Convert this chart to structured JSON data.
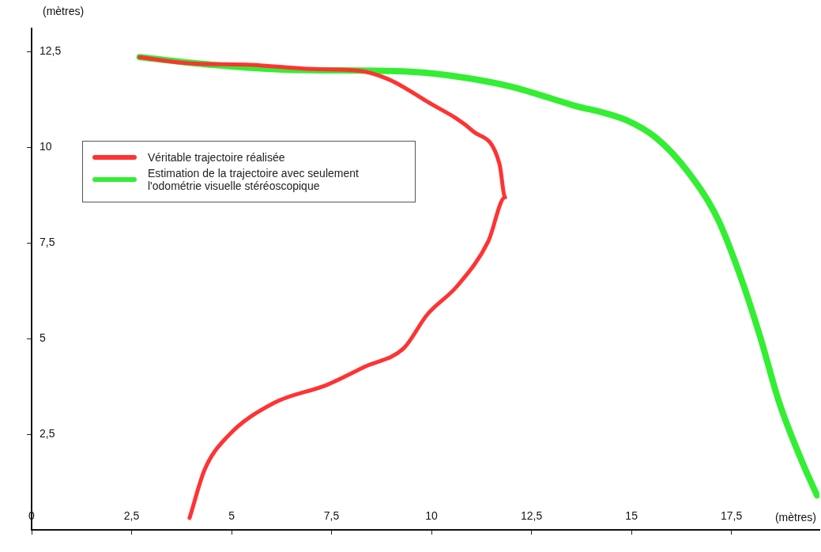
{
  "chart_data": {
    "type": "line",
    "xlabel": "(mètres)",
    "ylabel": "(mètres)",
    "xlim": [
      0,
      19.7
    ],
    "ylim": [
      0,
      13.1
    ],
    "xticks": [
      0,
      {
        "value": 2.5,
        "label": "2,5"
      },
      5,
      {
        "value": 7.5,
        "label": "7,5"
      },
      10,
      {
        "value": 12.5,
        "label": "12,5"
      },
      15,
      {
        "value": 17.5,
        "label": "17,5"
      }
    ],
    "yticks": [
      {
        "value": 2.5,
        "label": "2,5"
      },
      5,
      {
        "value": 7.5,
        "label": "7,5"
      },
      10,
      {
        "value": 12.5,
        "label": "12,5"
      }
    ],
    "grid": false,
    "legend": "left",
    "marker": "none",
    "line_style": "solid",
    "series": [
      {
        "name": "Véritable trajectoire réalisée",
        "color": "#ff3333",
        "x": [
          3.95,
          4.33,
          4.9,
          6.05,
          7.39,
          8.35,
          9.31,
          9.89,
          10.65,
          11.42,
          11.84,
          11.7,
          11.03,
          9.89,
          8.93,
          8.16,
          7.01,
          5.48,
          3.95,
          2.7
        ],
        "values": [
          0.31,
          1.58,
          2.44,
          3.31,
          3.79,
          4.27,
          4.75,
          5.62,
          6.38,
          7.54,
          8.69,
          9.56,
          10.42,
          11.19,
          11.77,
          12.0,
          12.04,
          12.15,
          12.19,
          12.35
        ]
      },
      {
        "name": "Estimation de la trajectoire avec seulement l'odométrie visuelle stéréoscopique",
        "color": "#33ee33",
        "x": [
          2.7,
          4.52,
          6.44,
          9.31,
          10.46,
          11.99,
          13.52,
          14.86,
          15.63,
          16.4,
          17.16,
          17.74,
          18.22,
          18.7,
          19.27,
          19.64
        ],
        "values": [
          12.35,
          12.15,
          12.02,
          11.98,
          11.87,
          11.58,
          11.1,
          10.71,
          10.23,
          9.37,
          8.12,
          6.58,
          5.04,
          3.31,
          1.77,
          0.9
        ]
      }
    ]
  }
}
